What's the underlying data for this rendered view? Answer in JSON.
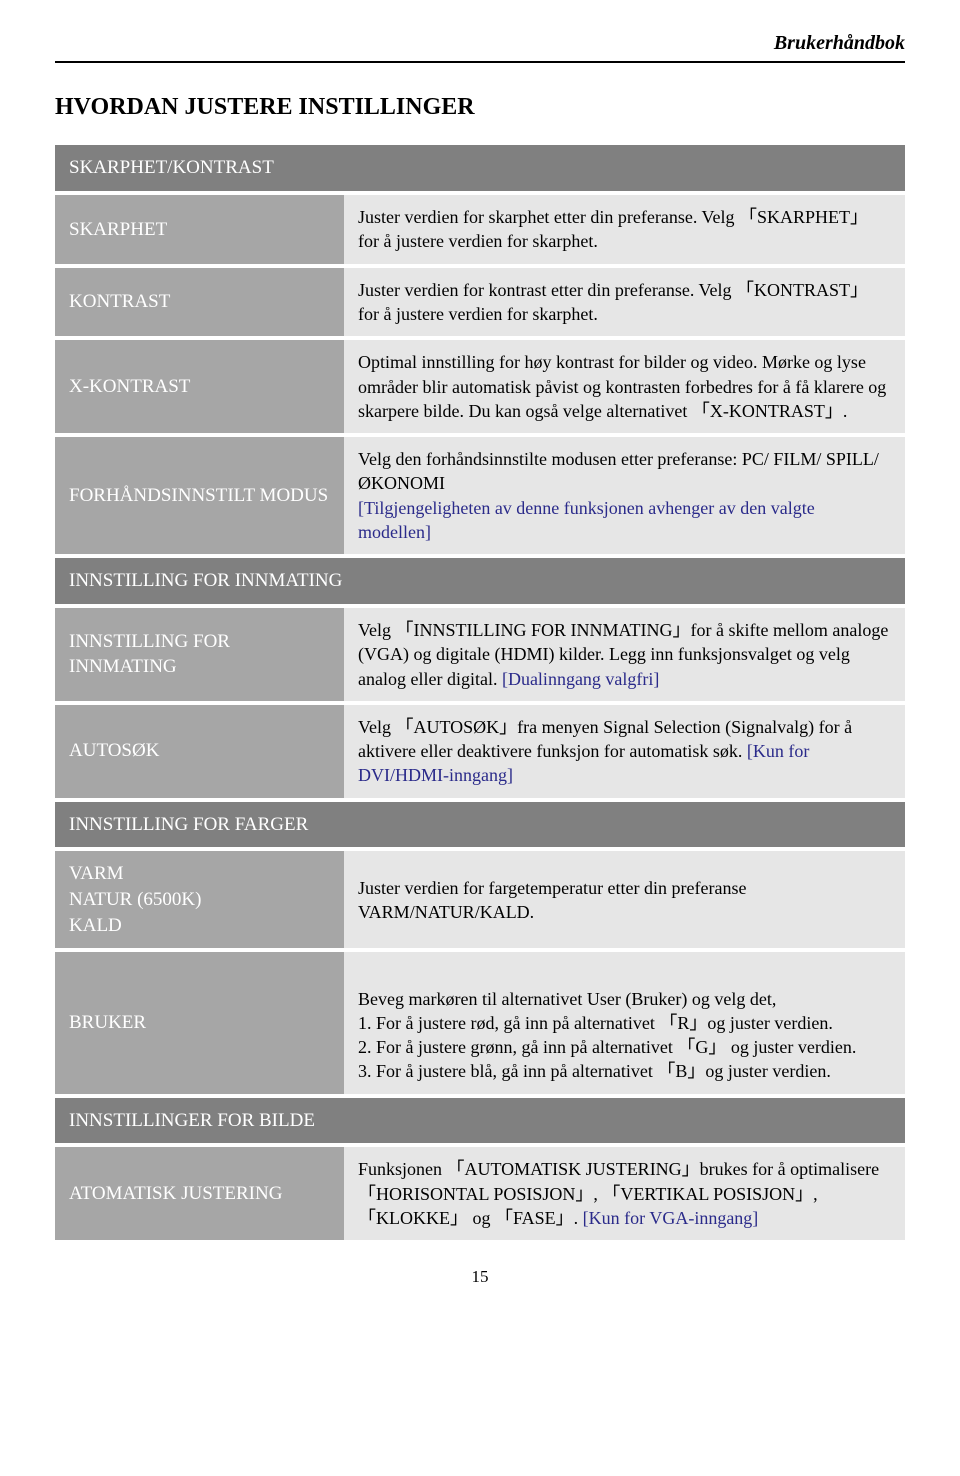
{
  "header": {
    "doc_title": "Brukerhåndbok"
  },
  "heading": "HVORDAN JUSTERE INSTILLINGER",
  "sections": [
    {
      "title": "SKARPHET/KONTRAST",
      "rows": [
        {
          "label": "SKARPHET",
          "desc": "Juster verdien for skarphet etter din preferanse. Velg 「SKARPHET」 for å justere verdien for skarphet."
        },
        {
          "label": "KONTRAST",
          "desc": "Juster verdien for kontrast etter din preferanse. Velg 「KONTRAST」 for å justere verdien for skarphet."
        },
        {
          "label": "X-KONTRAST",
          "desc": "Optimal innstilling for høy kontrast for bilder og video. Mørke og lyse områder blir automatisk påvist og kontrasten forbedres for å få klarere og skarpere bilde. Du kan også velge alternativet 「X-KONTRAST」."
        },
        {
          "label": "FORHÅNDSINNSTILT MODUS",
          "desc": "Velg den forhåndsinnstilte modusen etter preferanse: PC/ FILM/ SPILL/ ØKONOMI",
          "note": "[Tilgjengeligheten av denne funksjonen avhenger av den valgte modellen]"
        }
      ]
    },
    {
      "title": "INNSTILLING FOR INNMATING",
      "rows": [
        {
          "label": "INNSTILLING FOR INNMATING",
          "desc": "Velg  「INNSTILLING FOR INNMATING」for å skifte mellom analoge (VGA) og digitale (HDMI) kilder. Legg inn funksjonsvalget og velg analog eller digital. ",
          "note": "[Dualinngang valgfri]"
        },
        {
          "label": "AUTOSØK",
          "desc": "Velg 「AUTOSØK」fra menyen Signal Selection (Signalvalg) for å aktivere eller deaktivere funksjon for automatisk søk. ",
          "note": "[Kun for DVI/HDMI-inngang]"
        }
      ]
    },
    {
      "title": "INNSTILLING FOR FARGER",
      "rows": [
        {
          "label": "VARM\nNATUR (6500K)\nKALD",
          "desc": "Juster verdien for fargetemperatur etter din preferanse VARM/NATUR/KALD."
        },
        {
          "label": "BRUKER",
          "desc": "Beveg markøren til alternativet User (Bruker) og velg det,\n1. For å justere rød, gå inn på alternativet 「R」og juster verdien.\n2. For å justere grønn, gå inn på alternativet  「G」 og juster verdien.\n3. For å justere blå, gå inn på alternativet 「B」og juster verdien."
        }
      ]
    },
    {
      "title": "INNSTILLINGER FOR BILDE",
      "rows": [
        {
          "label": "ATOMATISK JUSTERING",
          "desc": "Funksjonen  「AUTOMATISK JUSTERING」brukes for å optimalisere 「HORISONTAL POSISJON」, 「VERTIKAL POSISJON」, 「KLOKKE」  og 「FASE」. ",
          "note": "[Kun for VGA-inngang]"
        }
      ]
    }
  ],
  "page_number": "15",
  "colors": {
    "section_header_bg": "#808080",
    "label_bg": "#a6a6a6",
    "desc_bg": "#e6e6e6",
    "note_color": "#2a2a8a"
  }
}
